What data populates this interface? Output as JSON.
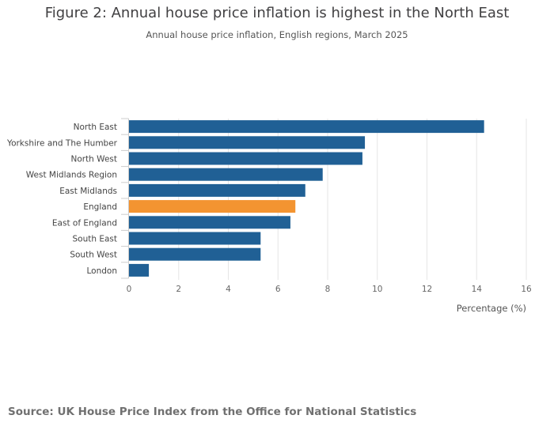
{
  "header": {
    "title": "Figure 2: Annual house price inflation is highest in the North East",
    "subtitle": "Annual house price inflation, English regions, March 2025"
  },
  "chart_data": {
    "type": "bar",
    "orientation": "horizontal",
    "title": "Figure 2: Annual house price inflation is highest in the North East",
    "subtitle": "Annual house price inflation, English regions, March 2025",
    "categories": [
      "North East",
      "Yorkshire and The Humber",
      "North West",
      "West Midlands Region",
      "East Midlands",
      "England",
      "East of England",
      "South East",
      "South West",
      "London"
    ],
    "values": [
      14.3,
      9.5,
      9.4,
      7.8,
      7.1,
      6.7,
      6.5,
      5.3,
      5.3,
      0.8
    ],
    "highlight_category": "England",
    "colors": {
      "default": "#206095",
      "highlight": "#f39431",
      "grid": "#e6e6e6",
      "axis": "#cccccc"
    },
    "xlabel": "Percentage (%)",
    "ylabel": "",
    "xlim": [
      0,
      16
    ],
    "xticks": [
      0,
      2,
      4,
      6,
      8,
      10,
      12,
      14,
      16
    ],
    "grid": true
  },
  "footer": {
    "source": "Source: UK House Price Index from the Office for National Statistics"
  }
}
